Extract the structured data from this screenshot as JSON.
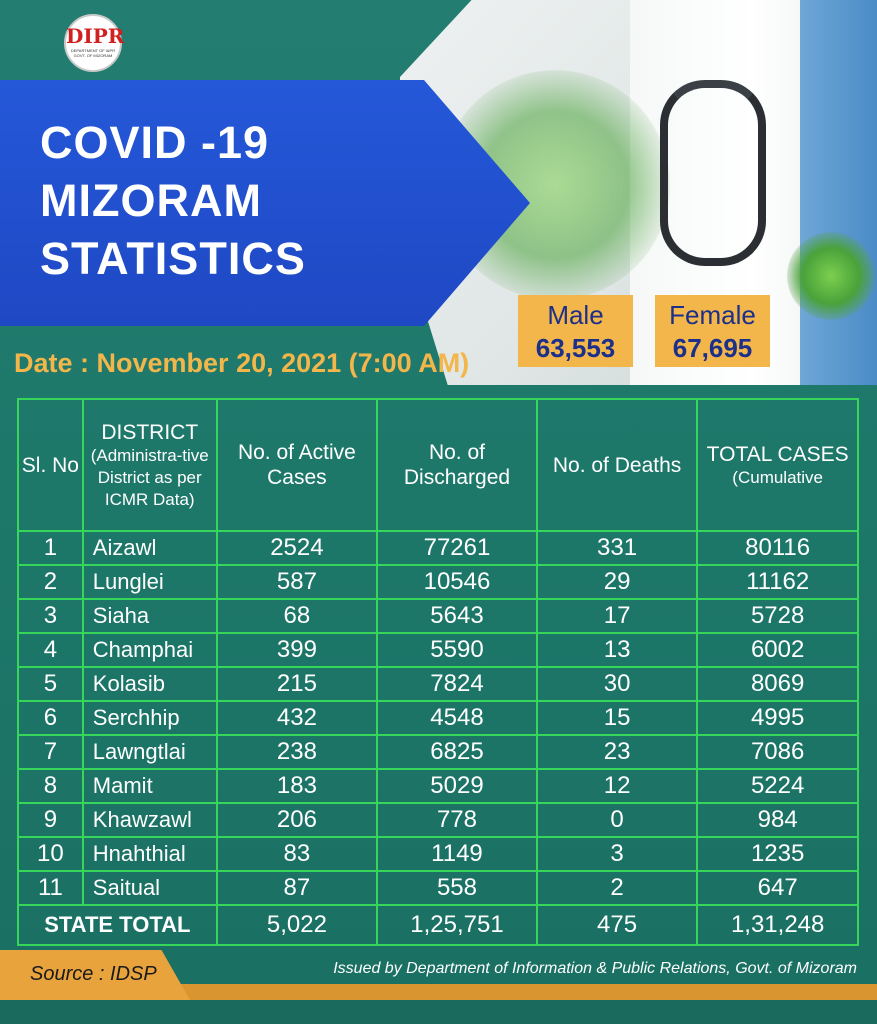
{
  "logo": {
    "mark": "DIPR",
    "line1": "DEPARTMENT OF I&PR",
    "line2": "GOVT. OF MIZORAM"
  },
  "title": {
    "line1": "COVID -19",
    "line2": "MIZORAM",
    "line3": "STATISTICS"
  },
  "gender": {
    "male": {
      "label": "Male",
      "value": "63,553"
    },
    "female": {
      "label": "Female",
      "value": "67,695"
    }
  },
  "date": "Date : November 20, 2021 (7:00 AM)",
  "table": {
    "headers": {
      "sl": "Sl. No",
      "district": "DISTRICT",
      "district_sub": "(Administra-tive District as per ICMR Data)",
      "active": "No. of Active Cases",
      "discharged": "No. of Discharged",
      "deaths": "No. of Deaths",
      "total": "TOTAL CASES",
      "total_sub": "(Cumulative"
    },
    "rows": [
      {
        "sl": "1",
        "district": "Aizawl",
        "active": "2524",
        "discharged": "77261",
        "deaths": "331",
        "total": "80116"
      },
      {
        "sl": "2",
        "district": "Lunglei",
        "active": "587",
        "discharged": "10546",
        "deaths": "29",
        "total": "11162"
      },
      {
        "sl": "3",
        "district": "Siaha",
        "active": "68",
        "discharged": "5643",
        "deaths": "17",
        "total": "5728"
      },
      {
        "sl": "4",
        "district": "Champhai",
        "active": "399",
        "discharged": "5590",
        "deaths": "13",
        "total": "6002"
      },
      {
        "sl": "5",
        "district": "Kolasib",
        "active": "215",
        "discharged": "7824",
        "deaths": "30",
        "total": "8069"
      },
      {
        "sl": "6",
        "district": "Serchhip",
        "active": "432",
        "discharged": "4548",
        "deaths": "15",
        "total": "4995"
      },
      {
        "sl": "7",
        "district": "Lawngtlai",
        "active": "238",
        "discharged": "6825",
        "deaths": "23",
        "total": "7086"
      },
      {
        "sl": "8",
        "district": "Mamit",
        "active": "183",
        "discharged": "5029",
        "deaths": "12",
        "total": "5224"
      },
      {
        "sl": "9",
        "district": "Khawzawl",
        "active": "206",
        "discharged": "778",
        "deaths": "0",
        "total": "984"
      },
      {
        "sl": "10",
        "district": "Hnahthial",
        "active": "83",
        "discharged": "1149",
        "deaths": "3",
        "total": "1235"
      },
      {
        "sl": "11",
        "district": "Saitual",
        "active": "87",
        "discharged": "558",
        "deaths": "2",
        "total": "647"
      }
    ],
    "total": {
      "label": "STATE TOTAL",
      "active": "5,022",
      "discharged": "1,25,751",
      "deaths": "475",
      "total": "1,31,248"
    }
  },
  "footer": {
    "source": "Source : IDSP",
    "issued": "Issued by Department of  Information & Public Relations, Govt. of Mizoram"
  },
  "colors": {
    "background": "#1f7a6c",
    "banner": "#2458d8",
    "accent": "#f2b64a",
    "grid": "#36d65a"
  }
}
